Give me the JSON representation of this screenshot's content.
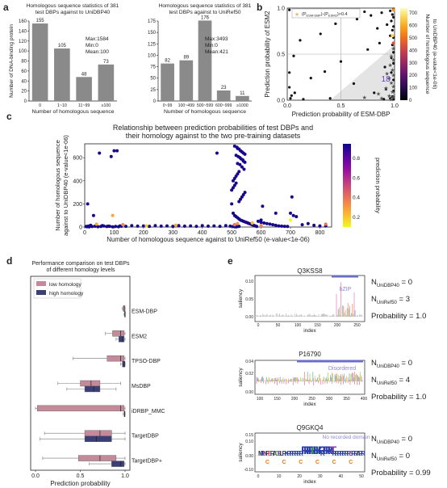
{
  "panel_letters": {
    "a": "a",
    "b": "b",
    "c": "c",
    "d": "d",
    "e": "e"
  },
  "chart_data": [
    {
      "id": "a1",
      "type": "bar",
      "title_lines": [
        "Homologous sequence statistics of 381",
        "test DBPs against to UniDBP40"
      ],
      "categories": [
        "0",
        "1~10",
        "11~99",
        "≥100"
      ],
      "values": [
        155,
        105,
        48,
        73
      ],
      "ylabel": "Number of DNA-binding protein",
      "xlabel": "Number of homologous sequence",
      "ylim": [
        0,
        160
      ],
      "yticks": [
        0,
        20,
        40,
        60,
        80,
        100,
        120,
        140,
        160
      ],
      "stats": [
        "Max:1584",
        "Min:0",
        "Mean:100"
      ],
      "bar_color": "#8a8a8a"
    },
    {
      "id": "a2",
      "type": "bar",
      "title_lines": [
        "Homologous sequence statistics of 381",
        "test DBPs against to UniRef50"
      ],
      "categories": [
        "0~99",
        "100~499",
        "500~599",
        "600~999",
        "≥1000"
      ],
      "values": [
        82,
        89,
        176,
        23,
        11
      ],
      "ylabel": "",
      "xlabel": "Number of homologous sequence",
      "ylim": [
        0,
        175
      ],
      "yticks": [
        0,
        25,
        50,
        75,
        100,
        125,
        150,
        175
      ],
      "stats": [
        "Max:3493",
        "Min:0",
        "Mean:421"
      ],
      "bar_color": "#8a8a8a"
    },
    {
      "id": "b",
      "type": "scatter",
      "xlabel": "Prediction probability of ESM-DBP",
      "ylabel": "Prediction probability of ESM2",
      "xlim": [
        0,
        1
      ],
      "ylim": [
        0,
        1
      ],
      "xticks": [
        "0.0",
        "0.5",
        "1.0"
      ],
      "yticks": [
        "0.0",
        "0.5",
        "1.0"
      ],
      "legend": "(P_ESM-DBP)-(P_ESM2)>0.4",
      "legend_main": "(P",
      "legend_sub1": "ESM-DBP",
      "legend_mid": ")-(P",
      "legend_sub2": "ESM2",
      "legend_end": ")>0.4",
      "annotation": "18",
      "colorbar_label_lines": [
        "Number of homologous sequence",
        "to UniDBP40 (e-value<1e-06)"
      ],
      "colorbar_ticks": [
        "0",
        "100",
        "200",
        "300",
        "400",
        "500",
        "600",
        "700"
      ],
      "points": [
        [
          0.02,
          0.98
        ],
        [
          0.55,
          0.97
        ],
        [
          0.72,
          0.96
        ],
        [
          0.88,
          0.95
        ],
        [
          0.96,
          0.97
        ],
        [
          0.99,
          0.99
        ],
        [
          0.98,
          0.93
        ],
        [
          0.78,
          0.92
        ],
        [
          0.65,
          0.88
        ],
        [
          0.99,
          0.9
        ],
        [
          0.97,
          0.86
        ],
        [
          0.45,
          0.83
        ],
        [
          0.93,
          0.82
        ],
        [
          0.99,
          0.8
        ],
        [
          0.84,
          0.78
        ],
        [
          0.98,
          0.76
        ],
        [
          0.31,
          0.72
        ],
        [
          0.96,
          0.7
        ],
        [
          0.99,
          0.68
        ],
        [
          0.12,
          0.65
        ],
        [
          0.86,
          0.62
        ],
        [
          0.98,
          0.6
        ],
        [
          0.75,
          0.55
        ],
        [
          0.99,
          0.52
        ],
        [
          0.06,
          0.48
        ],
        [
          0.97,
          0.46
        ],
        [
          0.5,
          0.42
        ],
        [
          0.99,
          0.4
        ],
        [
          0.91,
          0.36
        ],
        [
          0.35,
          0.31
        ],
        [
          0.02,
          0.3
        ],
        [
          0.97,
          0.3
        ],
        [
          0.22,
          0.24
        ],
        [
          0.99,
          0.22
        ],
        [
          0.62,
          0.18
        ],
        [
          0.02,
          0.14
        ],
        [
          0.92,
          0.12
        ],
        [
          0.99,
          0.1
        ],
        [
          0.81,
          0.08
        ],
        [
          0.04,
          0.05
        ],
        [
          0.03,
          0.02
        ],
        [
          0.98,
          0.04
        ],
        [
          0.99,
          0.01
        ],
        [
          0.96,
          0.02
        ],
        [
          0.9,
          0.01
        ],
        [
          0.15,
          0.01
        ],
        [
          0.4,
          0.02
        ],
        [
          0.07,
          0.08
        ]
      ],
      "stars": [
        [
          0.97,
          0.48
        ],
        [
          0.99,
          0.44
        ],
        [
          0.96,
          0.38
        ],
        [
          0.98,
          0.33
        ],
        [
          0.99,
          0.27
        ],
        [
          0.95,
          0.24
        ],
        [
          0.97,
          0.19
        ],
        [
          0.99,
          0.15
        ],
        [
          0.92,
          0.13
        ],
        [
          0.98,
          0.09
        ],
        [
          0.95,
          0.05
        ],
        [
          0.99,
          0.04
        ],
        [
          0.72,
          0.03
        ],
        [
          0.88,
          0.02
        ],
        [
          0.97,
          0.01
        ],
        [
          0.99,
          0.56
        ],
        [
          0.93,
          0.29
        ],
        [
          0.85,
          0.07
        ]
      ]
    },
    {
      "id": "c",
      "type": "scatter",
      "title_lines": [
        "Relationship between prediction probabilities of test DBPs and",
        "their homology against to the two pre-training datasets"
      ],
      "xlabel": "Number of homologous sequence against to UniRef50 (e-value<1e-06)",
      "ylabel_lines": [
        "Number of homologous sequence",
        "against to UniDBP40 (e-value<1e-06)"
      ],
      "xlim": [
        0,
        840
      ],
      "ylim": [
        0,
        720
      ],
      "xticks": [
        0,
        100,
        200,
        300,
        400,
        500,
        600,
        700,
        800
      ],
      "yticks": [
        0,
        200,
        400,
        600
      ],
      "colorbar_label": "prediction probability",
      "colorbar_ticks": [
        "0.2",
        "0.4",
        "0.6",
        "0.8"
      ],
      "points": [
        [
          90,
          610
        ],
        [
          100,
          660
        ],
        [
          50,
          640
        ],
        [
          10,
          200
        ],
        [
          30,
          100
        ],
        [
          110,
          660
        ],
        [
          450,
          640
        ],
        [
          510,
          700
        ],
        [
          518,
          690
        ],
        [
          520,
          680
        ],
        [
          525,
          675
        ],
        [
          530,
          660
        ],
        [
          535,
          650
        ],
        [
          540,
          640
        ],
        [
          545,
          630
        ],
        [
          515,
          620
        ],
        [
          522,
          610
        ],
        [
          528,
          600
        ],
        [
          532,
          590
        ],
        [
          538,
          580
        ],
        [
          540,
          570
        ],
        [
          545,
          560
        ],
        [
          520,
          550
        ],
        [
          528,
          540
        ],
        [
          535,
          520
        ],
        [
          542,
          500
        ],
        [
          500,
          200
        ],
        [
          505,
          120
        ],
        [
          510,
          100
        ],
        [
          515,
          90
        ],
        [
          520,
          80
        ],
        [
          525,
          70
        ],
        [
          530,
          60
        ],
        [
          535,
          55
        ],
        [
          540,
          50
        ],
        [
          545,
          45
        ],
        [
          550,
          40
        ],
        [
          555,
          35
        ],
        [
          560,
          30
        ],
        [
          565,
          25
        ],
        [
          570,
          20
        ],
        [
          575,
          15
        ],
        [
          580,
          10
        ],
        [
          585,
          5
        ],
        [
          590,
          50
        ],
        [
          600,
          40
        ],
        [
          610,
          35
        ],
        [
          620,
          30
        ],
        [
          630,
          25
        ],
        [
          640,
          20
        ],
        [
          650,
          15
        ],
        [
          660,
          10
        ],
        [
          670,
          8
        ],
        [
          680,
          6
        ],
        [
          690,
          5
        ],
        [
          700,
          120
        ],
        [
          710,
          100
        ],
        [
          720,
          90
        ],
        [
          740,
          20
        ],
        [
          760,
          30
        ],
        [
          780,
          15
        ],
        [
          800,
          10
        ],
        [
          820,
          10
        ],
        [
          20,
          15
        ],
        [
          40,
          10
        ],
        [
          60,
          12
        ],
        [
          80,
          8
        ],
        [
          120,
          10
        ],
        [
          140,
          6
        ],
        [
          160,
          12
        ],
        [
          180,
          8
        ],
        [
          200,
          10
        ],
        [
          220,
          6
        ],
        [
          240,
          12
        ],
        [
          260,
          8
        ],
        [
          280,
          10
        ],
        [
          300,
          6
        ],
        [
          320,
          12
        ],
        [
          340,
          8
        ],
        [
          360,
          10
        ],
        [
          380,
          6
        ],
        [
          400,
          12
        ],
        [
          420,
          8
        ],
        [
          440,
          10
        ],
        [
          460,
          6
        ],
        [
          480,
          12
        ],
        [
          495,
          8
        ],
        [
          505,
          5
        ],
        [
          510,
          3
        ],
        [
          515,
          2
        ],
        [
          520,
          4
        ],
        [
          525,
          6
        ],
        [
          5,
          5
        ],
        [
          8,
          3
        ],
        [
          12,
          8
        ],
        [
          15,
          2
        ],
        [
          25,
          4
        ],
        [
          35,
          7
        ],
        [
          45,
          3
        ],
        [
          55,
          5
        ],
        [
          65,
          9
        ],
        [
          75,
          4
        ],
        [
          85,
          6
        ],
        [
          95,
          2
        ],
        [
          105,
          5
        ],
        [
          115,
          3
        ],
        [
          125,
          7
        ],
        [
          600,
          60
        ],
        [
          605,
          180
        ],
        [
          525,
          220
        ],
        [
          530,
          240
        ],
        [
          535,
          260
        ],
        [
          540,
          280
        ],
        [
          545,
          300
        ],
        [
          500,
          320
        ],
        [
          505,
          340
        ],
        [
          510,
          360
        ],
        [
          515,
          380
        ],
        [
          505,
          400
        ],
        [
          510,
          420
        ],
        [
          515,
          440
        ],
        [
          520,
          460
        ],
        [
          525,
          480
        ],
        [
          705,
          260
        ],
        [
          650,
          120
        ]
      ],
      "highlights": [
        [
          130,
          20,
          0.2
        ],
        [
          310,
          15,
          0.3
        ],
        [
          510,
          20,
          0.15
        ],
        [
          520,
          30,
          0.25
        ],
        [
          570,
          35,
          0.35
        ],
        [
          820,
          25,
          0.15
        ],
        [
          40,
          25,
          0.3
        ],
        [
          210,
          10,
          0.4
        ],
        [
          600,
          12,
          0.2
        ],
        [
          700,
          60,
          0.5
        ],
        [
          95,
          100,
          0.3
        ]
      ]
    },
    {
      "id": "d",
      "type": "box",
      "title_lines": [
        "Performance comparison on test DBPs",
        "of different homology levels"
      ],
      "xlabel": "Prediction probability",
      "xticks": [
        "0.0",
        "0.5",
        "1.0"
      ],
      "legend": [
        "low homology",
        "high homology"
      ],
      "colors": {
        "low": "#c48a9a",
        "high": "#3b3f78"
      },
      "methods": [
        "ESM-DBP",
        "ESM2",
        "TPSO-DBP",
        "MsDBP",
        "iDRBP_MMC",
        "TargetDBP",
        "TargetDBP+"
      ],
      "boxes": [
        {
          "low": {
            "min": 0.97,
            "q1": 0.98,
            "med": 0.99,
            "q3": 1.0,
            "max": 1.0
          },
          "high": {
            "min": 0.99,
            "q1": 0.995,
            "med": 0.998,
            "q3": 1.0,
            "max": 1.0
          }
        },
        {
          "low": {
            "min": 0.78,
            "q1": 0.86,
            "med": 0.95,
            "q3": 0.99,
            "max": 1.0
          },
          "high": {
            "min": 0.9,
            "q1": 0.93,
            "med": 0.97,
            "q3": 0.99,
            "max": 1.0
          }
        },
        {
          "low": {
            "min": 0.42,
            "q1": 0.8,
            "med": 0.95,
            "q3": 0.99,
            "max": 1.0
          },
          "high": {
            "min": 0.95,
            "q1": 0.97,
            "med": 0.99,
            "q3": 1.0,
            "max": 1.0
          }
        },
        {
          "low": {
            "min": 0.25,
            "q1": 0.5,
            "med": 0.62,
            "q3": 0.72,
            "max": 0.95
          },
          "high": {
            "min": 0.35,
            "q1": 0.55,
            "med": 0.65,
            "q3": 0.72,
            "max": 0.9
          }
        },
        {
          "low": {
            "min": 0.0,
            "q1": 0.02,
            "med": 0.95,
            "q3": 0.99,
            "max": 1.0
          },
          "high": {
            "min": 0.98,
            "q1": 0.99,
            "med": 0.995,
            "q3": 1.0,
            "max": 1.0
          }
        },
        {
          "low": {
            "min": 0.1,
            "q1": 0.55,
            "med": 0.72,
            "q3": 0.85,
            "max": 1.0
          },
          "high": {
            "min": 0.05,
            "q1": 0.55,
            "med": 0.68,
            "q3": 0.85,
            "max": 1.0
          }
        },
        {
          "low": {
            "min": 0.08,
            "q1": 0.48,
            "med": 0.72,
            "q3": 0.9,
            "max": 1.0
          },
          "high": {
            "min": 0.6,
            "q1": 0.85,
            "med": 0.95,
            "q3": 0.99,
            "max": 1.0
          }
        }
      ]
    }
  ],
  "panel_e": [
    {
      "name": "Q3KSS8",
      "domain": "bZIP",
      "ylabel": "saliency",
      "xlabel": "index",
      "yticks": [
        "0.00",
        "0.05",
        "0.10"
      ],
      "xticks": [
        "0",
        "50",
        "100",
        "150",
        "200",
        "250"
      ],
      "N1_base": "N",
      "N1_sub": "UniDBP40",
      "N1_val": "= 0",
      "N2_base": "N",
      "N2_sub": "UniRef50",
      "N2_val": "= 3",
      "prob": "Probability = 1.0"
    },
    {
      "name": "P16790",
      "domain": "Disordered",
      "ylabel": "saliency",
      "xlabel": "index",
      "yticks": [
        "0.00",
        "0.02",
        "0.04"
      ],
      "xticks": [
        "100",
        "150",
        "200",
        "250",
        "300",
        "350",
        "400"
      ],
      "N1_base": "N",
      "N1_sub": "UniDBP40",
      "N1_val": "= 0",
      "N2_base": "N",
      "N2_sub": "UniRef50",
      "N2_val": "= 4",
      "prob": "Probability = 1.0"
    },
    {
      "name": "Q9GKQ4",
      "domain": "No recorded domain",
      "ylabel": "saliency",
      "xlabel": "index",
      "yticks": [
        "-0.10",
        "0.00",
        "0.10",
        "0.15"
      ],
      "xticks": [
        "0",
        "10",
        "20",
        "30",
        "40",
        "50"
      ],
      "N1_base": "N",
      "N1_sub": "UniDBP40",
      "N1_val": "= 0",
      "N2_base": "N",
      "N2_sub": "UniRef50",
      "N2_val": "= 0",
      "prob": "Probability = 0.99"
    }
  ],
  "colors": {
    "bar": "#8a8a8a",
    "domain_bar": "#6a6fc4",
    "domain_text": "#8c86d6",
    "accent_purple": "#5b1ea6"
  }
}
